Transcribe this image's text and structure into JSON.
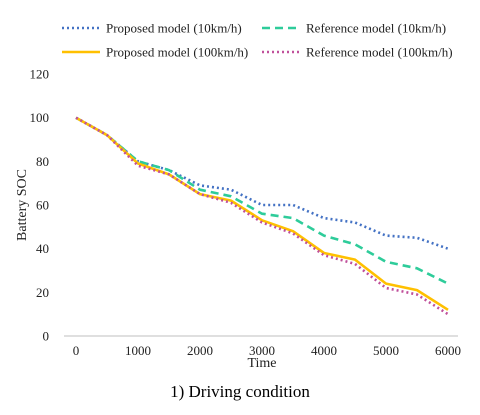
{
  "chart_data": {
    "type": "line",
    "title": "",
    "caption": "1) Driving condition",
    "xlabel": "Time",
    "ylabel": "Battery SOC",
    "xlim": [
      0,
      6000
    ],
    "ylim": [
      0,
      120
    ],
    "xticks": [
      0,
      1000,
      2000,
      3000,
      4000,
      5000,
      6000
    ],
    "yticks": [
      0,
      20,
      40,
      60,
      80,
      100,
      120
    ],
    "grid": false,
    "legend_position": "top",
    "x": [
      0,
      500,
      1000,
      1500,
      2000,
      2500,
      3000,
      3500,
      4000,
      4500,
      5000,
      5500,
      6000
    ],
    "series": [
      {
        "name": "Proposed model (10km/h)",
        "color": "#4472C4",
        "style": "dotted",
        "values": [
          100,
          92,
          80,
          76,
          69,
          67,
          60,
          60,
          54,
          52,
          46,
          45,
          40
        ]
      },
      {
        "name": "Reference model (10km/h)",
        "color": "#2ECC9A",
        "style": "dashed",
        "values": [
          100,
          92,
          80,
          76,
          67,
          64,
          56,
          54,
          46,
          42,
          34,
          31,
          24
        ]
      },
      {
        "name": "Proposed model (100km/h)",
        "color": "#FFC000",
        "style": "solid",
        "values": [
          100,
          92,
          79,
          74,
          65,
          62,
          53,
          48,
          38,
          35,
          24,
          21,
          12
        ]
      },
      {
        "name": "Reference model (100km/h)",
        "color": "#C0509B",
        "style": "dotted",
        "values": [
          100,
          92,
          78,
          74,
          65,
          61,
          52,
          47,
          37,
          33,
          22,
          19,
          10
        ]
      }
    ]
  }
}
